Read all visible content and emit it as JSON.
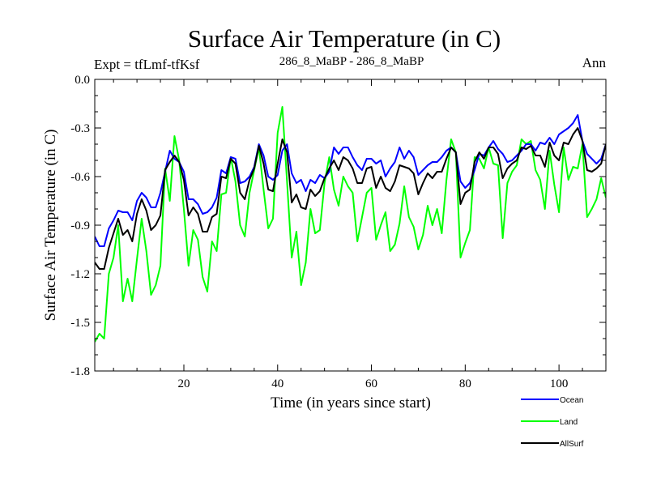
{
  "chart_data": {
    "type": "line",
    "title": "Surface Air Temperature (in C)",
    "subtitle_left": "Expt = tfLmf-tfKsf",
    "subtitle_center": "286_8_MaBP - 286_8_MaBP",
    "subtitle_right": "Ann",
    "xlabel": "Time (in years since start)",
    "ylabel": "Surface Air Temperature (in C)",
    "xlim": [
      1,
      110
    ],
    "ylim": [
      -1.8,
      0.0
    ],
    "xticks": [
      20,
      40,
      60,
      80,
      100
    ],
    "yticks": [
      -1.8,
      -1.5,
      -1.2,
      -0.9,
      -0.6,
      -0.3,
      0.0
    ],
    "ytick_labels": [
      "-1.8",
      "-1.5",
      "-1.2",
      "-0.9",
      "-0.6",
      "-0.3",
      "0.0"
    ],
    "legend_position": "bottom-right, outside plot",
    "series": [
      {
        "name": "Ocean",
        "color": "#0000ff",
        "values": [
          -0.97,
          -1.03,
          -1.03,
          -0.92,
          -0.87,
          -0.81,
          -0.82,
          -0.82,
          -0.87,
          -0.75,
          -0.7,
          -0.73,
          -0.79,
          -0.79,
          -0.7,
          -0.57,
          -0.44,
          -0.49,
          -0.51,
          -0.57,
          -0.74,
          -0.74,
          -0.77,
          -0.83,
          -0.82,
          -0.79,
          -0.73,
          -0.56,
          -0.58,
          -0.48,
          -0.49,
          -0.64,
          -0.63,
          -0.6,
          -0.54,
          -0.4,
          -0.47,
          -0.6,
          -0.62,
          -0.59,
          -0.44,
          -0.4,
          -0.58,
          -0.64,
          -0.62,
          -0.69,
          -0.62,
          -0.64,
          -0.59,
          -0.61,
          -0.57,
          -0.42,
          -0.46,
          -0.42,
          -0.42,
          -0.48,
          -0.53,
          -0.56,
          -0.49,
          -0.49,
          -0.52,
          -0.5,
          -0.6,
          -0.55,
          -0.51,
          -0.42,
          -0.49,
          -0.44,
          -0.48,
          -0.59,
          -0.56,
          -0.53,
          -0.51,
          -0.51,
          -0.48,
          -0.44,
          -0.42,
          -0.45,
          -0.63,
          -0.67,
          -0.64,
          -0.56,
          -0.46,
          -0.47,
          -0.42,
          -0.38,
          -0.43,
          -0.46,
          -0.51,
          -0.5,
          -0.47,
          -0.44,
          -0.4,
          -0.4,
          -0.44,
          -0.39,
          -0.4,
          -0.36,
          -0.4,
          -0.34,
          -0.32,
          -0.3,
          -0.27,
          -0.22,
          -0.38,
          -0.46,
          -0.49,
          -0.52,
          -0.49,
          -0.4
        ]
      },
      {
        "name": "Land",
        "color": "#00ff00",
        "values": [
          -1.62,
          -1.57,
          -1.6,
          -1.2,
          -1.1,
          -0.9,
          -1.37,
          -1.23,
          -1.37,
          -1.11,
          -0.86,
          -1.06,
          -1.33,
          -1.27,
          -1.15,
          -0.55,
          -0.75,
          -0.35,
          -0.5,
          -0.8,
          -1.15,
          -0.93,
          -0.99,
          -1.22,
          -1.31,
          -1.0,
          -1.06,
          -0.71,
          -0.7,
          -0.48,
          -0.63,
          -0.9,
          -0.97,
          -0.7,
          -0.56,
          -0.42,
          -0.68,
          -0.92,
          -0.86,
          -0.33,
          -0.17,
          -0.63,
          -1.1,
          -0.94,
          -1.27,
          -1.13,
          -0.8,
          -0.95,
          -0.93,
          -0.64,
          -0.48,
          -0.68,
          -0.78,
          -0.6,
          -0.66,
          -0.7,
          -1.0,
          -0.85,
          -0.7,
          -0.67,
          -0.99,
          -0.9,
          -0.82,
          -1.06,
          -1.02,
          -0.89,
          -0.66,
          -0.85,
          -0.91,
          -1.05,
          -0.96,
          -0.78,
          -0.9,
          -0.8,
          -0.95,
          -0.62,
          -0.37,
          -0.45,
          -1.1,
          -1.01,
          -0.93,
          -0.48,
          -0.49,
          -0.55,
          -0.42,
          -0.52,
          -0.53,
          -0.98,
          -0.64,
          -0.57,
          -0.53,
          -0.37,
          -0.4,
          -0.38,
          -0.56,
          -0.62,
          -0.8,
          -0.44,
          -0.65,
          -0.82,
          -0.42,
          -0.62,
          -0.54,
          -0.55,
          -0.4,
          -0.85,
          -0.8,
          -0.74,
          -0.61,
          -0.73
        ]
      },
      {
        "name": "AllSurf",
        "color": "#000000",
        "values": [
          -1.13,
          -1.17,
          -1.17,
          -1.04,
          -0.95,
          -0.86,
          -0.96,
          -0.93,
          -1.0,
          -0.83,
          -0.74,
          -0.81,
          -0.93,
          -0.9,
          -0.84,
          -0.56,
          -0.51,
          -0.47,
          -0.51,
          -0.62,
          -0.84,
          -0.79,
          -0.83,
          -0.94,
          -0.94,
          -0.85,
          -0.83,
          -0.6,
          -0.61,
          -0.49,
          -0.52,
          -0.7,
          -0.74,
          -0.62,
          -0.55,
          -0.41,
          -0.52,
          -0.68,
          -0.69,
          -0.52,
          -0.37,
          -0.45,
          -0.76,
          -0.71,
          -0.79,
          -0.8,
          -0.68,
          -0.72,
          -0.69,
          -0.61,
          -0.55,
          -0.5,
          -0.56,
          -0.48,
          -0.5,
          -0.55,
          -0.64,
          -0.64,
          -0.55,
          -0.54,
          -0.67,
          -0.6,
          -0.67,
          -0.69,
          -0.63,
          -0.53,
          -0.54,
          -0.55,
          -0.58,
          -0.71,
          -0.64,
          -0.58,
          -0.61,
          -0.57,
          -0.57,
          -0.49,
          -0.42,
          -0.45,
          -0.77,
          -0.7,
          -0.68,
          -0.51,
          -0.45,
          -0.49,
          -0.42,
          -0.42,
          -0.46,
          -0.61,
          -0.55,
          -0.52,
          -0.5,
          -0.42,
          -0.43,
          -0.41,
          -0.47,
          -0.47,
          -0.54,
          -0.39,
          -0.47,
          -0.5,
          -0.39,
          -0.4,
          -0.34,
          -0.3,
          -0.38,
          -0.56,
          -0.57,
          -0.55,
          -0.52,
          -0.4
        ]
      }
    ]
  }
}
